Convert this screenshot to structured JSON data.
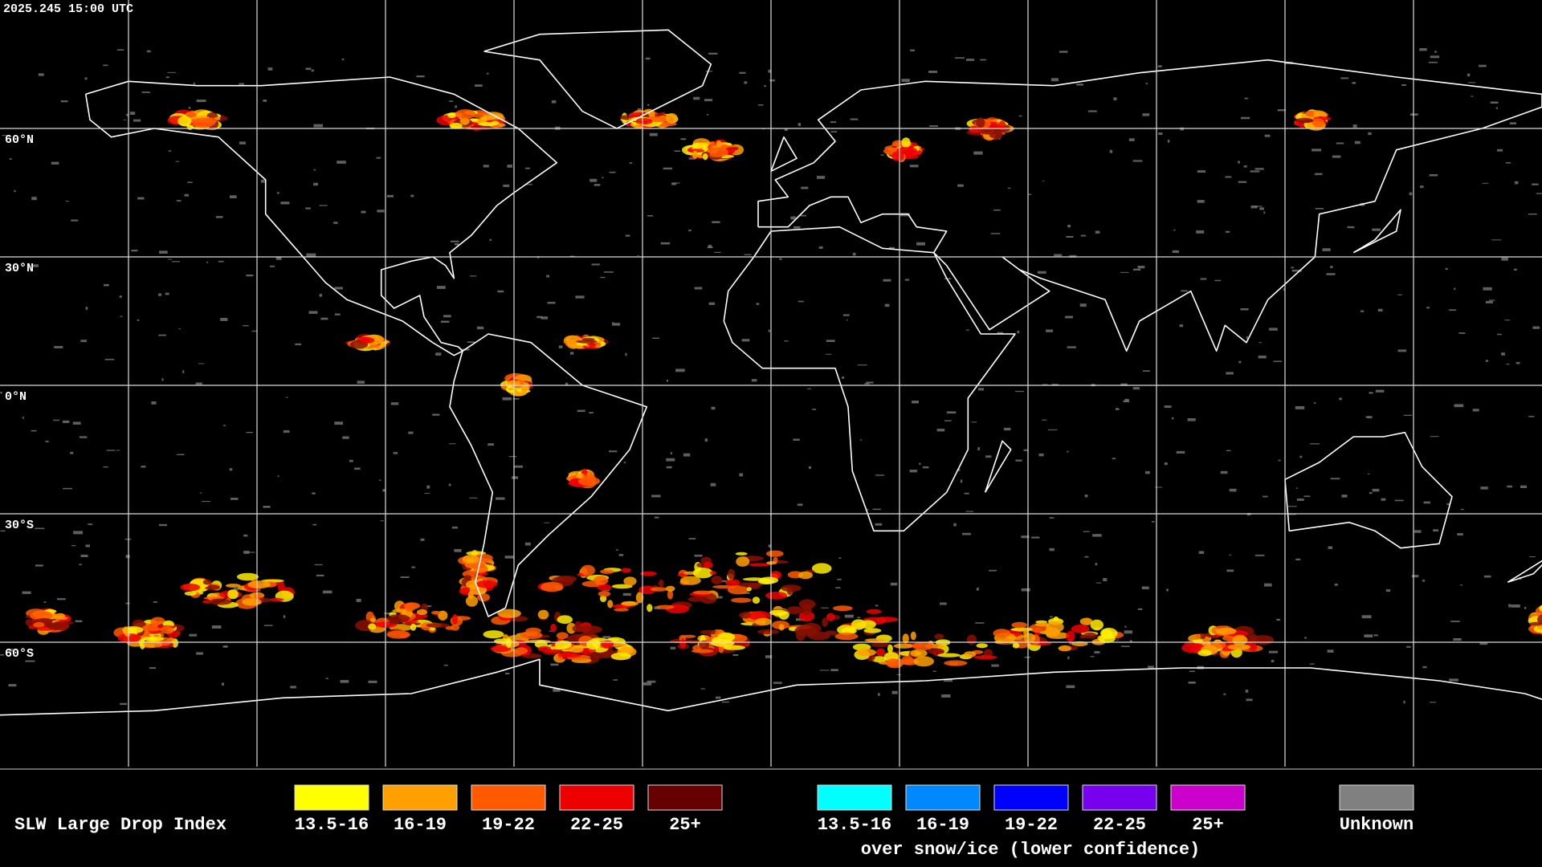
{
  "header": {
    "timestamp": "2025.245 15:00 UTC"
  },
  "latitude_labels": [
    "60°N",
    "30°N",
    "0°N",
    "30°S",
    "60°S"
  ],
  "legend": {
    "title": "SLW Large Drop Index",
    "groups": [
      {
        "items": [
          {
            "label": "13.5-16",
            "color": "#ffff00"
          },
          {
            "label": "16-19",
            "color": "#ffa000"
          },
          {
            "label": "19-22",
            "color": "#ff5a00"
          },
          {
            "label": "22-25",
            "color": "#ee0000"
          },
          {
            "label": "25+",
            "color": "#660000"
          }
        ]
      },
      {
        "items": [
          {
            "label": "13.5-16",
            "color": "#00ffff"
          },
          {
            "label": "16-19",
            "color": "#0088ff"
          },
          {
            "label": "19-22",
            "color": "#0000ff"
          },
          {
            "label": "22-25",
            "color": "#7700ee"
          },
          {
            "label": "25+",
            "color": "#cc00cc"
          }
        ],
        "caption": "over snow/ice (lower confidence)"
      }
    ],
    "unknown": {
      "label": "Unknown",
      "color": "#808080"
    }
  }
}
